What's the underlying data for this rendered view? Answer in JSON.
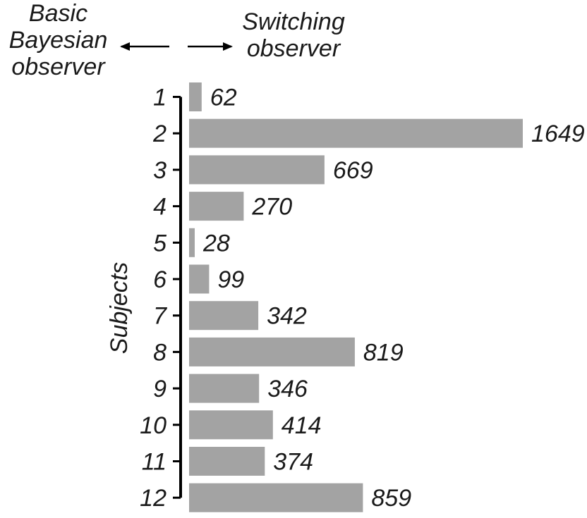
{
  "header": {
    "left_label": "Basic Bayesian observer",
    "right_label": "Switching observer"
  },
  "chart_data": {
    "type": "bar",
    "orientation": "horizontal",
    "categories": [
      "1",
      "2",
      "3",
      "4",
      "5",
      "6",
      "7",
      "8",
      "9",
      "10",
      "11",
      "12"
    ],
    "values": [
      62,
      1649,
      669,
      270,
      28,
      99,
      342,
      819,
      346,
      414,
      374,
      859
    ],
    "ylabel": "Subjects",
    "xlim": [
      0,
      1649
    ],
    "bar_color": "#a3a3a3",
    "axis_color": "#000000",
    "grid": false,
    "legend": "none"
  }
}
